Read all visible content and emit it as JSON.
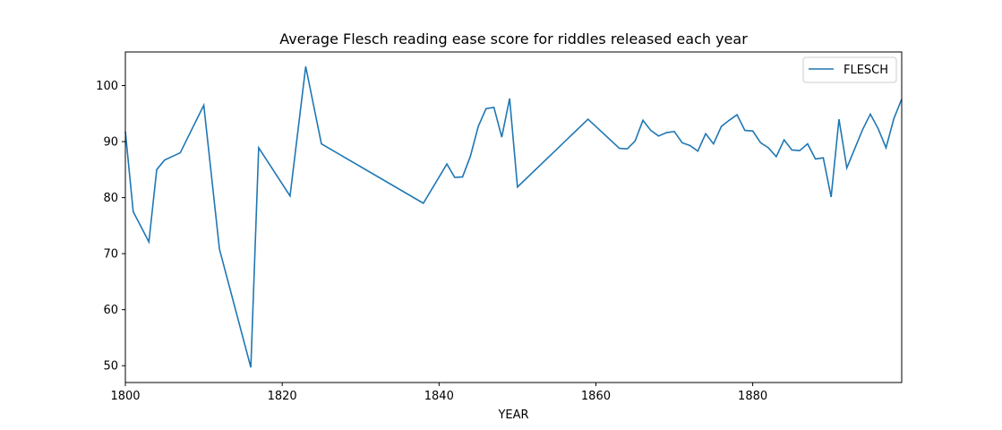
{
  "chart_data": {
    "type": "line",
    "title": "Average Flesch reading ease score for riddles released each year",
    "xlabel": "YEAR",
    "ylabel": "",
    "xlim": [
      1800,
      1899
    ],
    "ylim": [
      47,
      106
    ],
    "xticks": [
      1800,
      1820,
      1840,
      1860,
      1880
    ],
    "yticks": [
      50,
      60,
      70,
      80,
      90,
      100
    ],
    "grid": false,
    "legend_position": "top-right",
    "series": [
      {
        "name": "FLESCH",
        "color": "#1f77b4",
        "x": [
          1800,
          1801,
          1803,
          1804,
          1805,
          1807,
          1810,
          1812,
          1816,
          1817,
          1821,
          1823,
          1825,
          1838,
          1841,
          1842,
          1843,
          1844,
          1845,
          1846,
          1847,
          1848,
          1849,
          1850,
          1859,
          1863,
          1864,
          1865,
          1866,
          1867,
          1868,
          1869,
          1870,
          1871,
          1872,
          1873,
          1874,
          1875,
          1876,
          1877,
          1878,
          1879,
          1880,
          1881,
          1882,
          1883,
          1884,
          1885,
          1886,
          1887,
          1888,
          1889,
          1890,
          1891,
          1892,
          1894,
          1895,
          1896,
          1897,
          1898,
          1899
        ],
        "values": [
          91.8,
          77.5,
          72.1,
          85.0,
          86.7,
          88.0,
          96.5,
          70.8,
          49.7,
          88.9,
          80.3,
          103.4,
          89.6,
          79.0,
          86.0,
          83.6,
          83.7,
          87.4,
          92.7,
          95.9,
          96.1,
          90.8,
          97.7,
          81.9,
          94.0,
          88.8,
          88.7,
          90.1,
          93.8,
          92.0,
          91.0,
          91.6,
          91.8,
          89.8,
          89.3,
          88.3,
          91.4,
          89.6,
          92.7,
          93.8,
          94.8,
          92.0,
          91.9,
          89.8,
          88.9,
          87.3,
          90.3,
          88.5,
          88.4,
          89.6,
          86.9,
          87.1,
          80.1,
          94.0,
          85.3,
          92.1,
          94.9,
          92.3,
          88.9,
          94.1,
          97.6
        ]
      }
    ]
  }
}
